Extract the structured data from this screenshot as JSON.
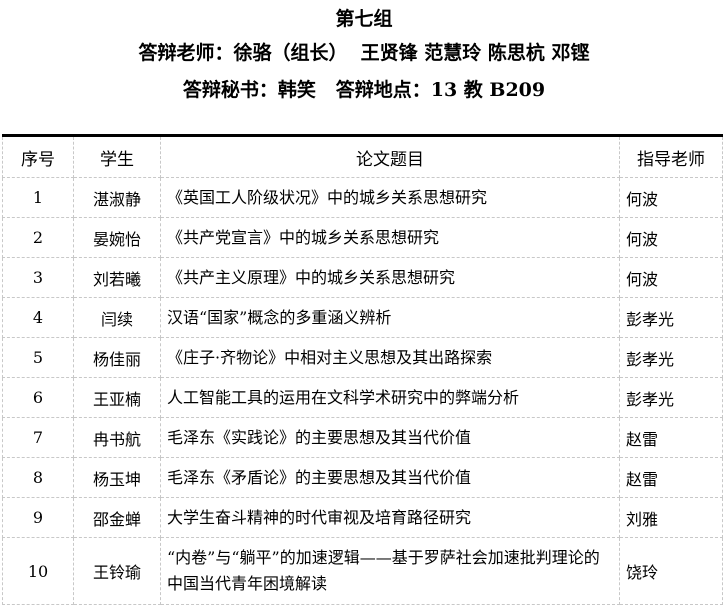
{
  "header": {
    "group": "第七组",
    "teachers": "答辩老师：徐骆（组长）  王贤锋 范慧玲 陈思杭 邓铿",
    "secretary_place": "答辩秘书：韩笑   答辩地点：13 教 B209"
  },
  "table": {
    "columns": [
      "序号",
      "学生",
      "论文题目",
      "指导老师"
    ],
    "rows": [
      [
        "1",
        "湛淑静",
        "《英国工人阶级状况》中的城乡关系思想研究",
        "何波"
      ],
      [
        "2",
        "晏婉怡",
        "《共产党宣言》中的城乡关系思想研究",
        "何波"
      ],
      [
        "3",
        "刘若曦",
        "《共产主义原理》中的城乡关系思想研究",
        "何波"
      ],
      [
        "4",
        "闫续",
        "汉语“国家”概念的多重涵义辨析",
        "彭孝光"
      ],
      [
        "5",
        "杨佳丽",
        "《庄子·齐物论》中相对主义思想及其出路探索",
        "彭孝光"
      ],
      [
        "6",
        "王亚楠",
        "人工智能工具的运用在文科学术研究中的弊端分析",
        "彭孝光"
      ],
      [
        "7",
        "冉书航",
        "毛泽东《实践论》的主要思想及其当代价值",
        "赵雷"
      ],
      [
        "8",
        "杨玉坤",
        "毛泽东《矛盾论》的主要思想及其当代价值",
        "赵雷"
      ],
      [
        "9",
        "邵金蝉",
        "大学生奋斗精神的时代审视及培育路径研究",
        "刘雅"
      ],
      [
        "10",
        "王铃瑜",
        "“内卷”与“躺平”的加速逻辑——基于罗萨社会加速批判理论的中国当代青年困境解读",
        "饶玲"
      ]
    ]
  }
}
